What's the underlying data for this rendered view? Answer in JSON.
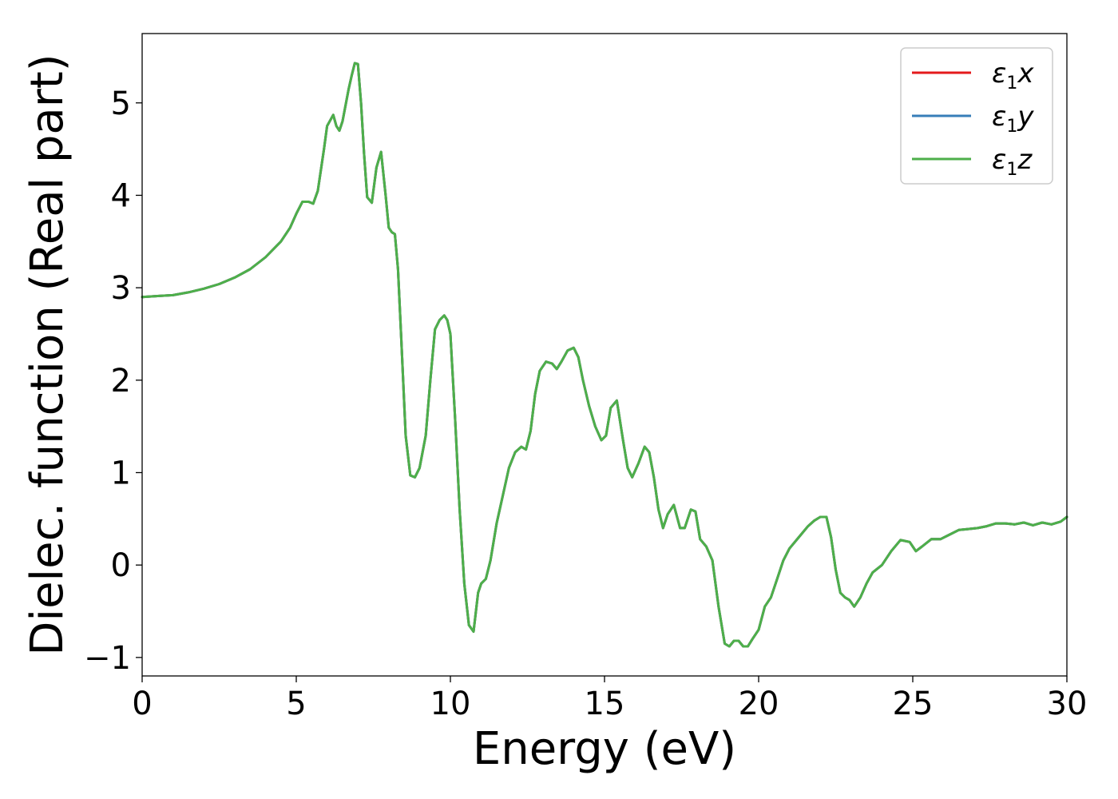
{
  "chart_data": {
    "type": "line",
    "xlabel": "Energy (eV)",
    "ylabel": "Dielec. function (Real part)",
    "xlim": [
      0,
      30
    ],
    "ylim": [
      -1.2,
      5.75
    ],
    "xticks": [
      0,
      5,
      10,
      15,
      20,
      25,
      30
    ],
    "yticks": [
      -1,
      0,
      1,
      2,
      3,
      4,
      5
    ],
    "ytick_labels": [
      "−1",
      "0",
      "1",
      "2",
      "3",
      "4",
      "5"
    ],
    "grid": false,
    "legend_position": "top-right",
    "series": [
      {
        "key": "x",
        "name_base": "ε",
        "name_sub": "1",
        "name_suffix": "x",
        "color": "#e41a1c"
      },
      {
        "key": "y",
        "name_base": "ε",
        "name_sub": "1",
        "name_suffix": "y",
        "color": "#377eb8"
      },
      {
        "key": "z",
        "name_base": "ε",
        "name_sub": "1",
        "name_suffix": "z",
        "color": "#4daf4a"
      }
    ],
    "x": [
      0,
      0.5,
      1,
      1.5,
      2,
      2.5,
      3,
      3.5,
      4,
      4.5,
      4.8,
      5.0,
      5.2,
      5.4,
      5.55,
      5.7,
      5.9,
      6.0,
      6.2,
      6.3,
      6.4,
      6.5,
      6.7,
      6.8,
      6.9,
      7.0,
      7.1,
      7.2,
      7.3,
      7.45,
      7.6,
      7.75,
      7.9,
      8.0,
      8.1,
      8.2,
      8.3,
      8.4,
      8.55,
      8.7,
      8.85,
      9.0,
      9.2,
      9.35,
      9.5,
      9.65,
      9.8,
      9.9,
      10.0,
      10.15,
      10.3,
      10.45,
      10.6,
      10.75,
      10.9,
      11.0,
      11.15,
      11.3,
      11.5,
      11.7,
      11.9,
      12.1,
      12.3,
      12.45,
      12.6,
      12.75,
      12.9,
      13.1,
      13.3,
      13.45,
      13.6,
      13.8,
      14.0,
      14.15,
      14.3,
      14.5,
      14.7,
      14.9,
      15.05,
      15.2,
      15.4,
      15.6,
      15.75,
      15.9,
      16.1,
      16.3,
      16.45,
      16.6,
      16.75,
      16.9,
      17.05,
      17.25,
      17.45,
      17.6,
      17.8,
      17.95,
      18.1,
      18.3,
      18.5,
      18.7,
      18.9,
      19.05,
      19.2,
      19.35,
      19.5,
      19.65,
      19.8,
      20.0,
      20.2,
      20.4,
      20.6,
      20.8,
      21.0,
      21.3,
      21.6,
      21.8,
      22.0,
      22.2,
      22.35,
      22.5,
      22.65,
      22.8,
      22.95,
      23.1,
      23.3,
      23.5,
      23.7,
      24.0,
      24.3,
      24.6,
      24.9,
      25.1,
      25.3,
      25.6,
      25.9,
      26.2,
      26.5,
      26.8,
      27.1,
      27.4,
      27.7,
      28.0,
      28.3,
      28.6,
      28.9,
      29.2,
      29.5,
      29.8,
      30.0
    ],
    "y": [
      2.9,
      2.91,
      2.92,
      2.95,
      2.99,
      3.04,
      3.11,
      3.2,
      3.33,
      3.5,
      3.65,
      3.8,
      3.93,
      3.93,
      3.91,
      4.05,
      4.5,
      4.75,
      4.87,
      4.75,
      4.7,
      4.8,
      5.15,
      5.3,
      5.43,
      5.42,
      5.0,
      4.45,
      3.98,
      3.92,
      4.3,
      4.47,
      4.0,
      3.65,
      3.6,
      3.58,
      3.2,
      2.5,
      1.4,
      0.97,
      0.95,
      1.05,
      1.4,
      2.0,
      2.55,
      2.65,
      2.7,
      2.65,
      2.5,
      1.6,
      0.6,
      -0.2,
      -0.65,
      -0.72,
      -0.3,
      -0.2,
      -0.15,
      0.05,
      0.45,
      0.75,
      1.05,
      1.22,
      1.28,
      1.25,
      1.45,
      1.85,
      2.1,
      2.2,
      2.18,
      2.12,
      2.2,
      2.32,
      2.35,
      2.25,
      2.0,
      1.72,
      1.5,
      1.35,
      1.4,
      1.7,
      1.78,
      1.35,
      1.05,
      0.95,
      1.1,
      1.28,
      1.22,
      0.95,
      0.6,
      0.4,
      0.55,
      0.65,
      0.4,
      0.4,
      0.6,
      0.58,
      0.28,
      0.2,
      0.05,
      -0.45,
      -0.85,
      -0.88,
      -0.82,
      -0.82,
      -0.88,
      -0.88,
      -0.8,
      -0.7,
      -0.45,
      -0.35,
      -0.15,
      0.05,
      0.18,
      0.3,
      0.42,
      0.48,
      0.52,
      0.52,
      0.3,
      -0.05,
      -0.3,
      -0.35,
      -0.38,
      -0.45,
      -0.35,
      -0.2,
      -0.08,
      0.0,
      0.15,
      0.27,
      0.25,
      0.15,
      0.2,
      0.28,
      0.28,
      0.33,
      0.38,
      0.39,
      0.4,
      0.42,
      0.45,
      0.45,
      0.44,
      0.46,
      0.43,
      0.46,
      0.44,
      0.47,
      0.52
    ]
  }
}
